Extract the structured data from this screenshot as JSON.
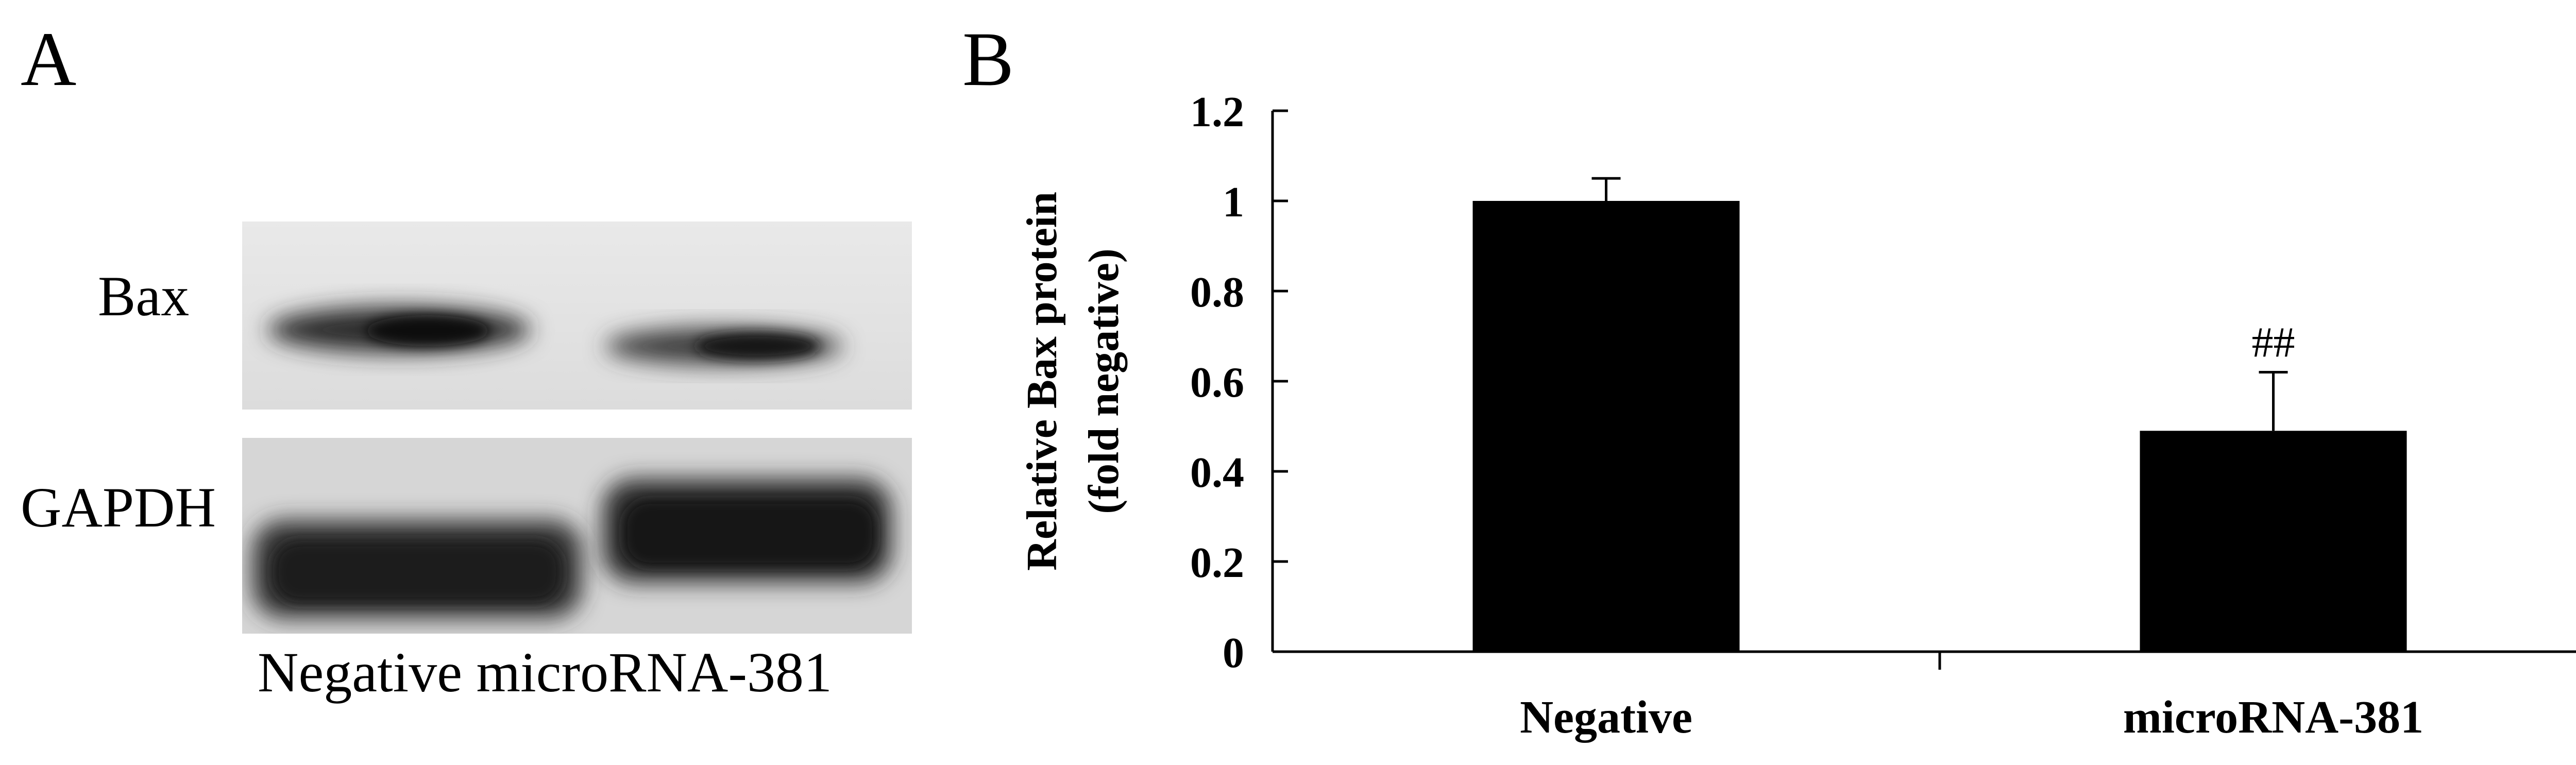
{
  "panel_a": {
    "label": "A",
    "blot_rows": [
      "Bax",
      "GAPDH"
    ],
    "lanes_caption": "Negative microRNA-381"
  },
  "panel_b": {
    "label": "B"
  },
  "chart_data": {
    "type": "bar",
    "categories": [
      "Negative",
      "microRNA-381"
    ],
    "values": [
      1.0,
      0.49
    ],
    "error_bars": [
      0.05,
      0.13
    ],
    "annotations": [
      "",
      "##"
    ],
    "ylabel_line1": "Relative Bax protein",
    "ylabel_line2": "(fold negative)",
    "ylim": [
      0,
      1.2
    ],
    "yticks": [
      0,
      0.2,
      0.4,
      0.6,
      0.8,
      1,
      1.2
    ],
    "ytick_labels": [
      "0",
      "0.2",
      "0.4",
      "0.6",
      "0.8",
      "1",
      "1.2"
    ],
    "grid": false,
    "bar_color": "#000000"
  }
}
